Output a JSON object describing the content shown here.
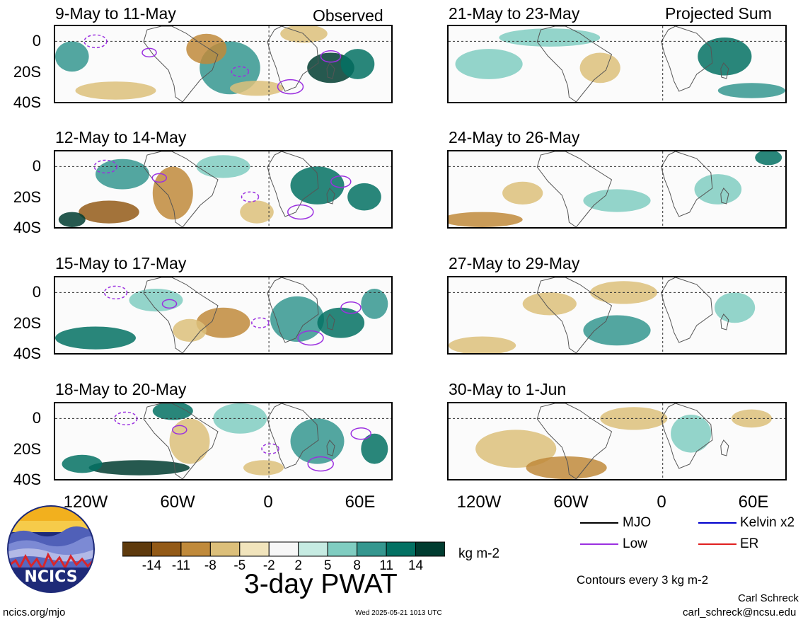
{
  "panels": [
    {
      "title": "9-May to 11-May",
      "tag": "Observed"
    },
    {
      "title": "12-May to 14-May",
      "tag": ""
    },
    {
      "title": "15-May to 17-May",
      "tag": ""
    },
    {
      "title": "18-May to 20-May",
      "tag": ""
    },
    {
      "title": "21-May to 23-May",
      "tag": "Projected Sum"
    },
    {
      "title": "24-May to 26-May",
      "tag": ""
    },
    {
      "title": "27-May to 29-May",
      "tag": ""
    },
    {
      "title": "30-May to 1-Jun",
      "tag": ""
    }
  ],
  "lat_labels": [
    "0",
    "20S",
    "40S"
  ],
  "lon_labels": [
    "120W",
    "60W",
    "0",
    "60E"
  ],
  "colorbar": {
    "labels": [
      "-14",
      "-11",
      "-8",
      "-5",
      "-2",
      "2",
      "5",
      "8",
      "11",
      "14"
    ],
    "colors": [
      "#5e3a0d",
      "#935a17",
      "#c08a3b",
      "#dcbf7a",
      "#f1e4bc",
      "#f7f7f7",
      "#c6ebe2",
      "#80cdc1",
      "#35978f",
      "#037163",
      "#003c30"
    ],
    "unit": "kg m-2",
    "title": "3-day PWAT"
  },
  "legend": {
    "items": [
      {
        "label": "MJO",
        "color": "#000000"
      },
      {
        "label": "Kelvin x2",
        "color": "#0000cc"
      },
      {
        "label": "Low",
        "color": "#9b30e0"
      },
      {
        "label": "ER",
        "color": "#e02020"
      }
    ],
    "contours_note": "Contours every 3 kg m-2"
  },
  "logo": {
    "text": "NCICS"
  },
  "footer": {
    "site": "ncics.org/mjo",
    "timestamp": "Wed 2025-05-21 1013 UTC",
    "author": "Carl Schreck",
    "email": "carl_schreck@ncsu.edu"
  }
}
